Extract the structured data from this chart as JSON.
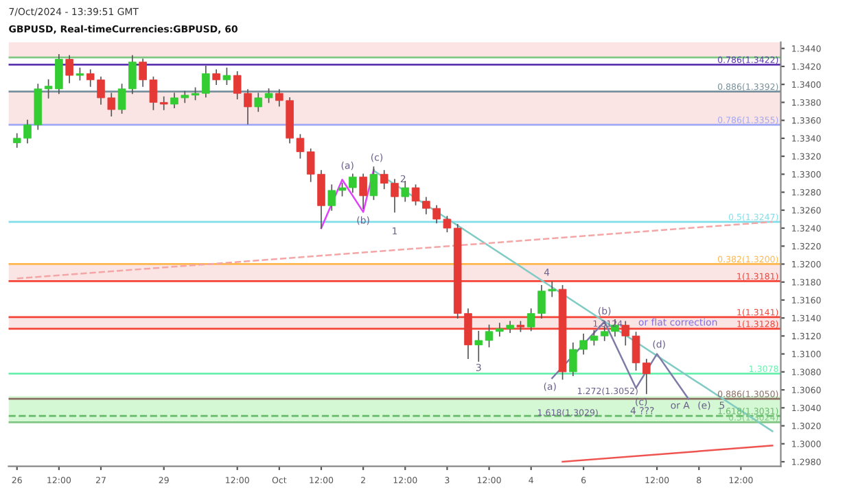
{
  "chart_data": {
    "type": "candlestick",
    "title": "GBPUSD, Real-timeCurrencies:GBPUSD, 60",
    "annotations": [
      "7/Oct/2024 - 13:39:51 GMT",
      "(a)",
      "(b)",
      "(c)",
      "1",
      "2",
      "3",
      "4",
      "(a)",
      "(b)",
      "(c)",
      "(d)",
      "(e)",
      "5",
      "4 ???",
      "or A",
      "1.272(1.3052)",
      "1.618(1.3029)",
      "1.3124"
    ],
    "categories": [
      "26",
      null,
      null,
      null,
      "12:00",
      null,
      null,
      null,
      "27",
      null,
      null,
      null,
      null,
      null,
      "29",
      null,
      null,
      null,
      null,
      null,
      null,
      "12:00",
      null,
      null,
      null,
      "Oct",
      null,
      null,
      null,
      "12:00",
      null,
      null,
      null,
      "2",
      null,
      null,
      null,
      "12:00",
      null,
      null,
      null,
      "3",
      null,
      null,
      null,
      "12:00",
      null,
      null,
      null,
      "4",
      null,
      null,
      null,
      null,
      "6",
      null,
      null,
      null,
      null,
      null,
      null,
      "12:00",
      null,
      null,
      null,
      "8",
      null,
      null,
      null,
      "12:00",
      null,
      null,
      null
    ],
    "ohlc": [
      [
        1.3335,
        1.3345,
        1.333,
        1.334
      ],
      [
        1.334,
        1.336,
        1.3335,
        1.3355
      ],
      [
        1.3355,
        1.34,
        1.335,
        1.3395
      ],
      [
        1.3395,
        1.3405,
        1.3385,
        1.3398
      ],
      [
        1.3395,
        1.3433,
        1.339,
        1.3428
      ],
      [
        1.3428,
        1.3432,
        1.3402,
        1.341
      ],
      [
        1.341,
        1.3418,
        1.3405,
        1.3412
      ],
      [
        1.3412,
        1.3416,
        1.3398,
        1.3405
      ],
      [
        1.3405,
        1.3408,
        1.3378,
        1.3385
      ],
      [
        1.3385,
        1.339,
        1.3365,
        1.3372
      ],
      [
        1.3372,
        1.34,
        1.3368,
        1.3395
      ],
      [
        1.3395,
        1.3432,
        1.339,
        1.3425
      ],
      [
        1.3425,
        1.3428,
        1.3398,
        1.3405
      ],
      [
        1.3405,
        1.3408,
        1.3372,
        1.338
      ],
      [
        1.338,
        1.3386,
        1.3372,
        1.3378
      ],
      [
        1.3378,
        1.339,
        1.3374,
        1.3385
      ],
      [
        1.3385,
        1.3392,
        1.338,
        1.3388
      ],
      [
        1.3388,
        1.3396,
        1.3383,
        1.339
      ],
      [
        1.339,
        1.342,
        1.3386,
        1.3412
      ],
      [
        1.3412,
        1.3416,
        1.34,
        1.3405
      ],
      [
        1.3405,
        1.3418,
        1.34,
        1.341
      ],
      [
        1.341,
        1.3414,
        1.3384,
        1.339
      ],
      [
        1.339,
        1.3394,
        1.3356,
        1.3375
      ],
      [
        1.3375,
        1.339,
        1.337,
        1.3385
      ],
      [
        1.3385,
        1.3395,
        1.338,
        1.339
      ],
      [
        1.339,
        1.3394,
        1.3376,
        1.3382
      ],
      [
        1.3382,
        1.3385,
        1.3335,
        1.334
      ],
      [
        1.334,
        1.3344,
        1.3318,
        1.3325
      ],
      [
        1.3325,
        1.3328,
        1.3292,
        1.33
      ],
      [
        1.33,
        1.3304,
        1.324,
        1.3265
      ],
      [
        1.3265,
        1.3288,
        1.326,
        1.3282
      ],
      [
        1.3282,
        1.329,
        1.3276,
        1.3285
      ],
      [
        1.3285,
        1.33,
        1.328,
        1.3297
      ],
      [
        1.3297,
        1.33,
        1.3262,
        1.3276
      ],
      [
        1.3276,
        1.3308,
        1.3272,
        1.33
      ],
      [
        1.33,
        1.3304,
        1.3284,
        1.329
      ],
      [
        1.329,
        1.3294,
        1.3258,
        1.3275
      ],
      [
        1.3275,
        1.3292,
        1.327,
        1.3285
      ],
      [
        1.3285,
        1.3288,
        1.3266,
        1.327
      ],
      [
        1.327,
        1.3274,
        1.3256,
        1.3262
      ],
      [
        1.3262,
        1.3265,
        1.3246,
        1.325
      ],
      [
        1.325,
        1.3253,
        1.3236,
        1.324
      ],
      [
        1.324,
        1.3244,
        1.314,
        1.3145
      ],
      [
        1.3145,
        1.315,
        1.3095,
        1.311
      ],
      [
        1.311,
        1.3125,
        1.3092,
        1.3115
      ],
      [
        1.3115,
        1.3132,
        1.3108,
        1.3125
      ],
      [
        1.3125,
        1.3134,
        1.312,
        1.3128
      ],
      [
        1.3128,
        1.3136,
        1.3124,
        1.3132
      ],
      [
        1.3132,
        1.3136,
        1.3125,
        1.313
      ],
      [
        1.313,
        1.315,
        1.3126,
        1.3145
      ],
      [
        1.3145,
        1.3176,
        1.314,
        1.317
      ],
      [
        1.317,
        1.318,
        1.3164,
        1.3172
      ],
      [
        1.3172,
        1.3176,
        1.3072,
        1.308
      ],
      [
        1.308,
        1.3112,
        1.3076,
        1.3105
      ],
      [
        1.3105,
        1.3122,
        1.31,
        1.3115
      ],
      [
        1.3115,
        1.3126,
        1.311,
        1.312
      ],
      [
        1.312,
        1.313,
        1.3115,
        1.3125
      ],
      [
        1.3125,
        1.3138,
        1.312,
        1.3132
      ],
      [
        1.3132,
        1.3136,
        1.311,
        1.312
      ],
      [
        1.312,
        1.3124,
        1.3082,
        1.309
      ],
      [
        1.309,
        1.3094,
        1.3056,
        1.3078
      ],
      null,
      null,
      null,
      null,
      null,
      null,
      null,
      null,
      null,
      null,
      null,
      null
    ],
    "series": [
      {
        "type": "line",
        "color": "#80cbc4",
        "values": [
          null,
          null,
          null,
          null,
          null,
          null,
          null,
          null,
          null,
          null,
          null,
          null,
          null,
          null,
          null,
          null,
          null,
          null,
          null,
          null,
          null,
          null,
          null,
          null,
          null,
          null,
          null,
          null,
          null,
          null,
          null,
          null,
          null,
          null,
          1.3304,
          null,
          null,
          null,
          null,
          null,
          null,
          null,
          null,
          null,
          null,
          null,
          null,
          null,
          null,
          null,
          null,
          null,
          null,
          null,
          null,
          null,
          null,
          null,
          null,
          null,
          null,
          null,
          null,
          null,
          null,
          null,
          null,
          null,
          null,
          null,
          null,
          null,
          1.3014
        ]
      },
      {
        "type": "line",
        "color": "#f4a6a6",
        "line_style": "dashed",
        "values": [
          1.3184,
          null,
          null,
          null,
          null,
          null,
          null,
          null,
          null,
          null,
          null,
          null,
          null,
          null,
          null,
          null,
          null,
          null,
          null,
          null,
          null,
          null,
          null,
          null,
          null,
          null,
          null,
          null,
          null,
          null,
          null,
          null,
          null,
          null,
          null,
          null,
          null,
          null,
          null,
          null,
          null,
          null,
          null,
          null,
          null,
          null,
          null,
          null,
          null,
          null,
          null,
          null,
          null,
          null,
          null,
          null,
          null,
          null,
          null,
          null,
          null,
          null,
          null,
          null,
          null,
          null,
          null,
          null,
          null,
          null,
          null,
          null,
          1.3247
        ]
      },
      {
        "type": "line",
        "color": "#ef5350",
        "values": [
          null,
          null,
          null,
          null,
          null,
          null,
          null,
          null,
          null,
          null,
          null,
          null,
          null,
          null,
          null,
          null,
          null,
          null,
          null,
          null,
          null,
          null,
          null,
          null,
          null,
          null,
          null,
          null,
          null,
          null,
          null,
          null,
          null,
          null,
          null,
          null,
          null,
          null,
          null,
          null,
          null,
          null,
          null,
          null,
          null,
          null,
          null,
          null,
          null,
          null,
          null,
          null,
          1.298,
          null,
          null,
          null,
          null,
          null,
          null,
          null,
          null,
          null,
          null,
          null,
          null,
          null,
          null,
          null,
          null,
          null,
          null,
          null,
          1.2998
        ]
      },
      {
        "type": "line",
        "color": "#e040fb",
        "values": [
          null,
          null,
          null,
          null,
          null,
          null,
          null,
          null,
          null,
          null,
          null,
          null,
          null,
          null,
          null,
          null,
          null,
          null,
          null,
          null,
          null,
          null,
          null,
          null,
          null,
          null,
          null,
          null,
          null,
          1.324,
          null,
          1.3294,
          null,
          1.3258,
          1.3305,
          null,
          null,
          null,
          null,
          null,
          null,
          null,
          null,
          null,
          null,
          null,
          null,
          null,
          null,
          null,
          null,
          null,
          null,
          null,
          null,
          null,
          null,
          null,
          null,
          null,
          null,
          null,
          null,
          null,
          null,
          null,
          null,
          null,
          null,
          null,
          null,
          null,
          null
        ]
      },
      {
        "type": "line",
        "color": "#7e7ba8",
        "values": [
          null,
          null,
          null,
          null,
          null,
          null,
          null,
          null,
          null,
          null,
          null,
          null,
          null,
          null,
          null,
          null,
          null,
          null,
          null,
          null,
          null,
          null,
          null,
          null,
          null,
          null,
          null,
          null,
          null,
          null,
          null,
          null,
          null,
          null,
          null,
          null,
          null,
          null,
          null,
          null,
          null,
          null,
          null,
          null,
          null,
          null,
          null,
          null,
          null,
          null,
          null,
          1.3073,
          null,
          null,
          null,
          null,
          1.3136,
          null,
          null,
          1.3062,
          null,
          1.31,
          null,
          null,
          1.305,
          null,
          null,
          null,
          null,
          null,
          null,
          null,
          null
        ]
      }
    ],
    "ref_lines": [
      {
        "axis": "y",
        "value": 1.343,
        "color": "#81c784"
      },
      {
        "axis": "y",
        "value": 1.3422,
        "label": "0.786(1.3422)",
        "color": "#5e35b1"
      },
      {
        "axis": "y",
        "value": 1.3392,
        "label": "0.886(1.3392)",
        "color": "#78909c"
      },
      {
        "axis": "y",
        "value": 1.3355,
        "label": "0.786(1.3355)",
        "color": "#9fa8f5"
      },
      {
        "axis": "y",
        "value": 1.3247,
        "label": "0.5(1.3247)",
        "color": "#80deea"
      },
      {
        "axis": "y",
        "value": 1.32,
        "label": "0.382(1.3200)",
        "color": "#ffb74d"
      },
      {
        "axis": "y",
        "value": 1.3181,
        "label": "1(1.3181)",
        "color": "#f44336"
      },
      {
        "axis": "y",
        "value": 1.3141,
        "label": "1(1.3141)",
        "color": "#f44336"
      },
      {
        "axis": "y",
        "value": 1.3128,
        "label": "1(1.3128)",
        "color": "#f44336"
      },
      {
        "axis": "y",
        "value": 1.3078,
        "label": "1.3078",
        "color": "#69f0ae"
      },
      {
        "axis": "y",
        "value": 1.305,
        "label": "0.886(1.3050)",
        "color": "#8d6e63"
      },
      {
        "axis": "y",
        "value": 1.3031,
        "label": "1.618(1.3031)",
        "color": "#66bb6a",
        "line_style": "dashed"
      },
      {
        "axis": "y",
        "value": 1.3024,
        "label": "0.5(1.3024)",
        "color": "#81c784"
      }
    ],
    "bands": [
      {
        "axis": "y",
        "from": 1.343,
        "to": 1.3447,
        "color": "#fde4e4"
      },
      {
        "axis": "y",
        "from": 1.3355,
        "to": 1.3392,
        "color": "#fbe4e4"
      },
      {
        "axis": "y",
        "from": 1.3181,
        "to": 1.32,
        "color": "#fbe4e4"
      },
      {
        "axis": "y",
        "from": 1.3128,
        "to": 1.3141,
        "label": "or flat correction",
        "color": "#fbe4e4"
      },
      {
        "axis": "y",
        "from": 1.3024,
        "to": 1.3053,
        "color": "#d4f7d4"
      }
    ],
    "ylim": [
      1.2975,
      1.3447
    ],
    "yticks": [
      {
        "value": 1.298,
        "label": "1.2980"
      },
      {
        "value": 1.3,
        "label": "1.3000"
      },
      {
        "value": 1.302,
        "label": "1.3020"
      },
      {
        "value": 1.304,
        "label": "1.3040"
      },
      {
        "value": 1.306,
        "label": "1.3060"
      },
      {
        "value": 1.308,
        "label": "1.3080"
      },
      {
        "value": 1.31,
        "label": "1.3100"
      },
      {
        "value": 1.312,
        "label": "1.3120"
      },
      {
        "value": 1.314,
        "label": "1.3140"
      },
      {
        "value": 1.316,
        "label": "1.3160"
      },
      {
        "value": 1.318,
        "label": "1.3180"
      },
      {
        "value": 1.32,
        "label": "1.3200"
      },
      {
        "value": 1.322,
        "label": "1.3220"
      },
      {
        "value": 1.324,
        "label": "1.3240"
      },
      {
        "value": 1.326,
        "label": "1.3260"
      },
      {
        "value": 1.328,
        "label": "1.3280"
      },
      {
        "value": 1.33,
        "label": "1.3300"
      },
      {
        "value": 1.332,
        "label": "1.3320"
      },
      {
        "value": 1.334,
        "label": "1.3340"
      },
      {
        "value": 1.336,
        "label": "1.3360"
      },
      {
        "value": 1.338,
        "label": "1.3380"
      },
      {
        "value": 1.34,
        "label": "1.3400"
      },
      {
        "value": 1.342,
        "label": "1.3420"
      },
      {
        "value": 1.344,
        "label": "1.3440"
      }
    ],
    "grid": false,
    "legend": false
  }
}
